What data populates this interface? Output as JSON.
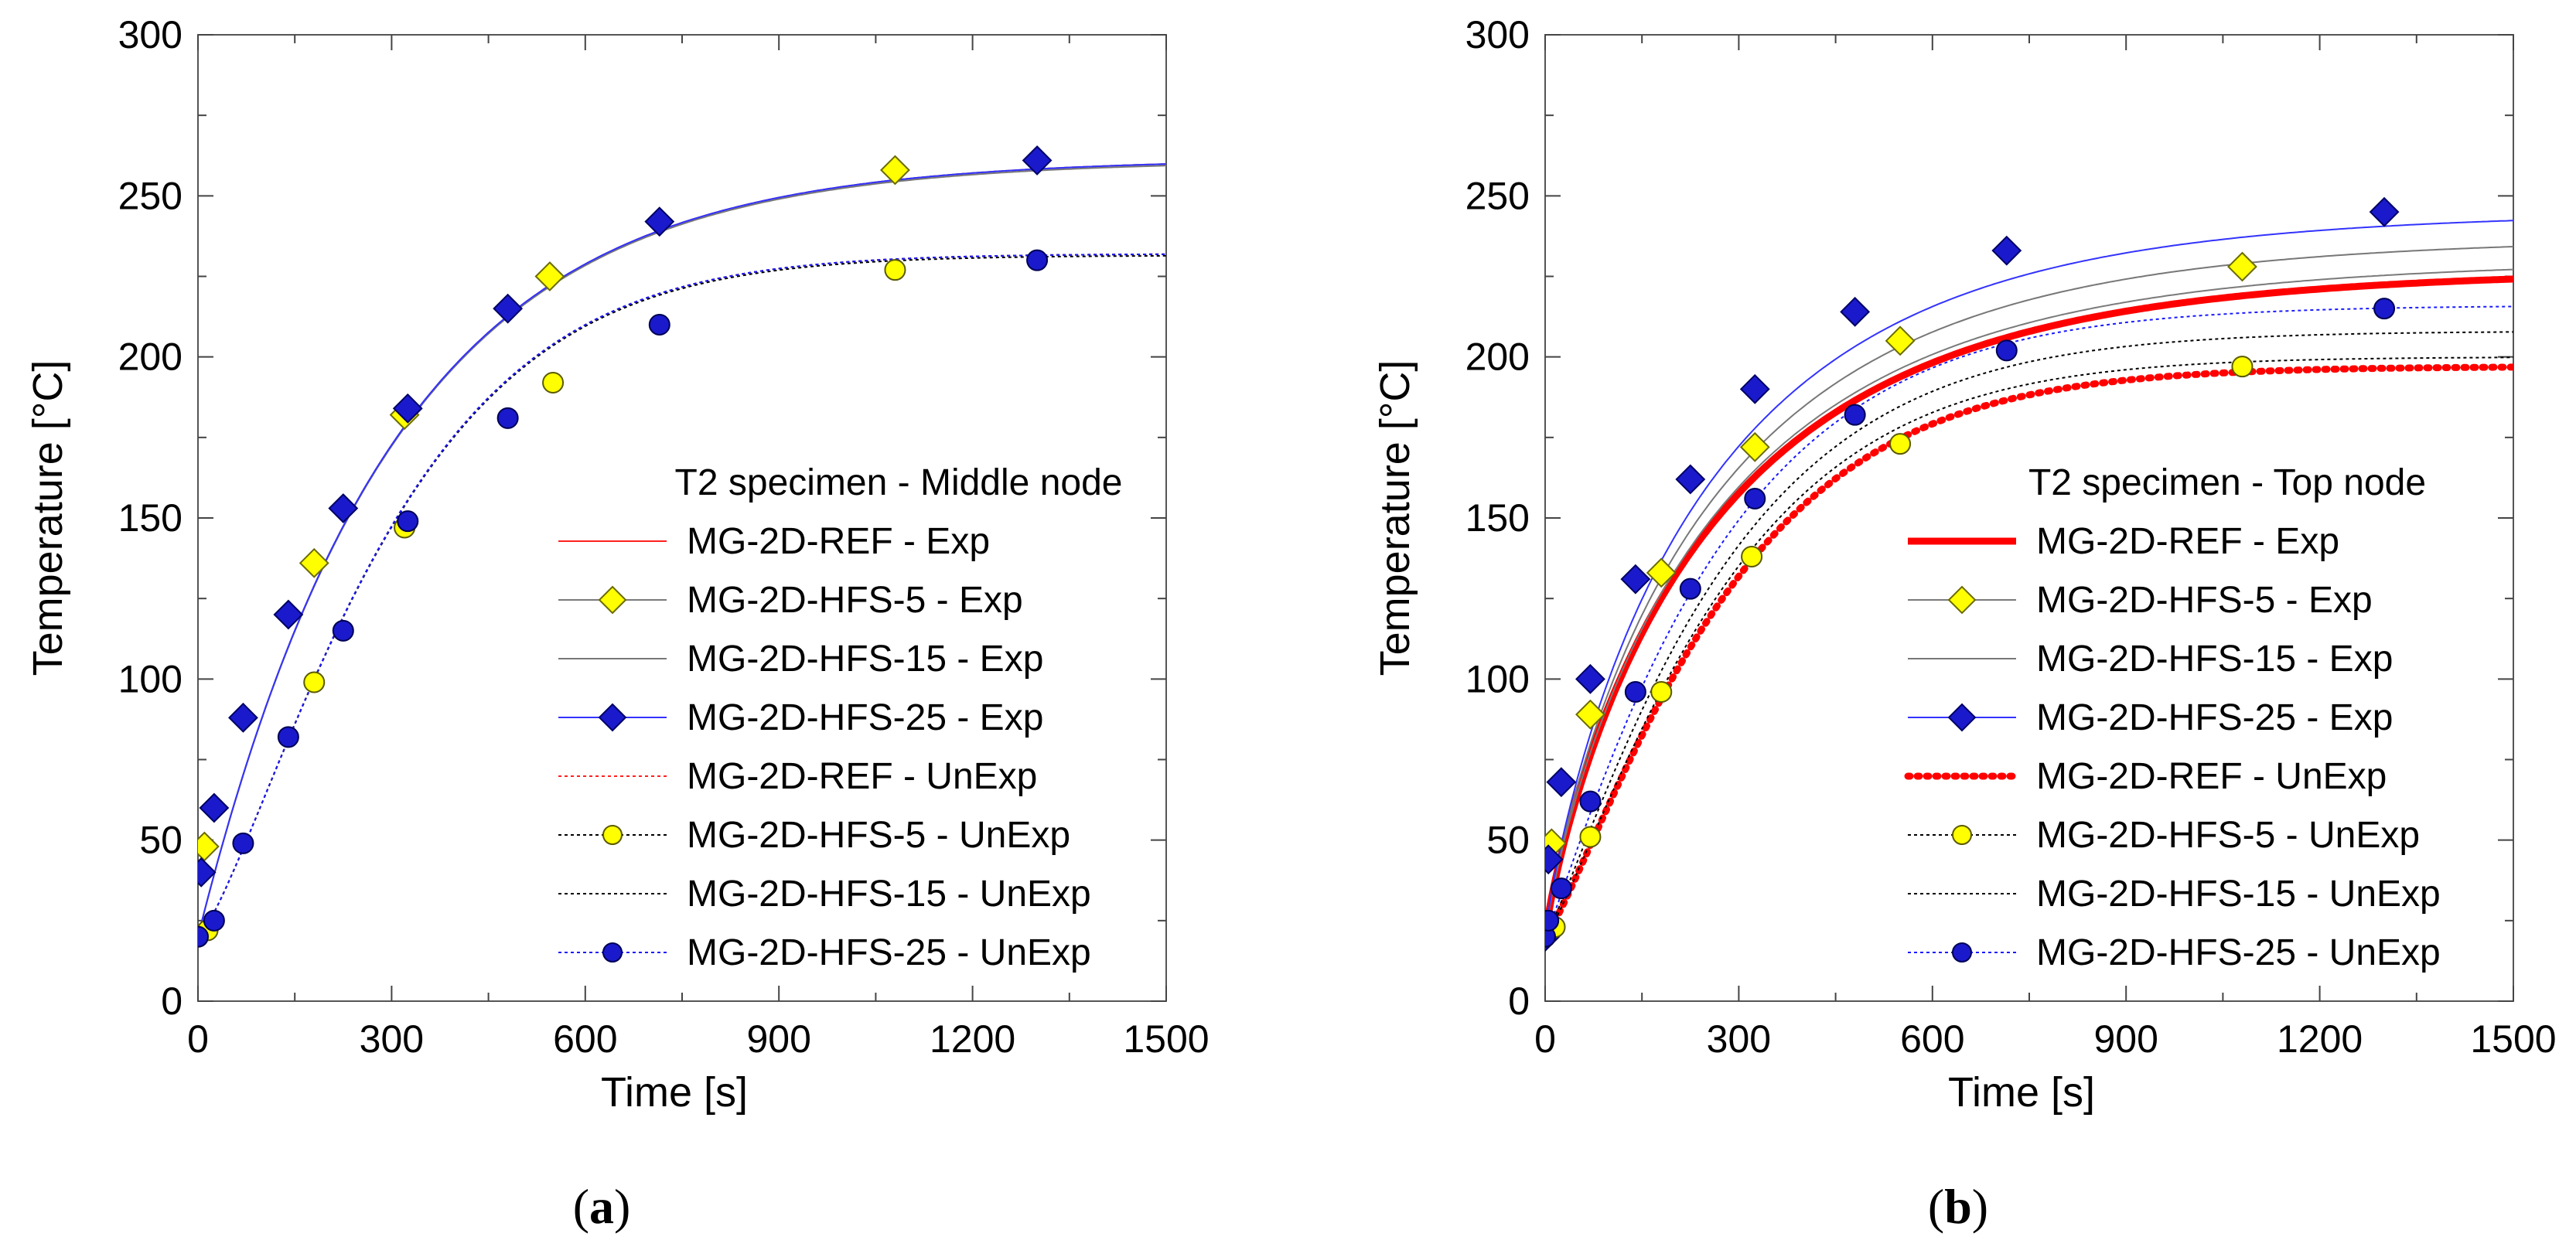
{
  "charts": [
    {
      "panel_label": {
        "prefix": "(",
        "letter": "a",
        "suffix": ")"
      },
      "xlabel": "Time  [s]",
      "ylabel": "Temperature  [°C]",
      "legend_title": "T2 specimen - Middle node",
      "legend_position": "center-right",
      "xticks": [
        "0",
        "300",
        "600",
        "900",
        "1200",
        "1500"
      ],
      "yticks": [
        "0",
        "50",
        "100",
        "150",
        "200",
        "250",
        "300"
      ]
    },
    {
      "panel_label": {
        "prefix": "(",
        "letter": "b",
        "suffix": ")"
      },
      "xlabel": "Time  [s]",
      "ylabel": "Temperature  [°C]",
      "legend_title": "T2 specimen - Top node",
      "legend_position": "center-right",
      "xticks": [
        "0",
        "300",
        "600",
        "900",
        "1200",
        "1500"
      ],
      "yticks": [
        "0",
        "50",
        "100",
        "150",
        "200",
        "250",
        "300"
      ]
    }
  ],
  "chart_data": [
    {
      "type": "line",
      "title": "T2 specimen - Middle node",
      "xlabel": "Time  [s]",
      "ylabel": "Temperature  [°C]",
      "xlim": [
        0,
        1500
      ],
      "ylim": [
        0,
        300
      ],
      "grid": false,
      "series": [
        {
          "name": "MG-2D-REF - Exp",
          "color": "#ff2020",
          "style": "solid",
          "width": "thin",
          "marker": "none",
          "curve": {
            "T0": 20,
            "Tinf": 261.5,
            "tau": 300,
            "n": 1
          },
          "points": []
        },
        {
          "name": "MG-2D-HFS-5 - Exp",
          "color": "#7a7a7a",
          "style": "solid",
          "width": "thin",
          "marker": "diamond",
          "marker_fill": "#ffff00",
          "curve": {
            "T0": 20,
            "Tinf": 261.5,
            "tau": 300,
            "n": 1
          },
          "points": [
            [
              10,
              48
            ],
            [
              180,
              136
            ],
            [
              320,
              182
            ],
            [
              545,
              225
            ],
            [
              1080,
              258
            ]
          ]
        },
        {
          "name": "MG-2D-HFS-15 - Exp",
          "color": "#777777",
          "style": "solid",
          "width": "thin",
          "marker": "none",
          "curve": {
            "T0": 20,
            "Tinf": 261,
            "tau": 300,
            "n": 1
          },
          "points": []
        },
        {
          "name": "MG-2D-HFS-25 - Exp",
          "color": "#3333ff",
          "style": "solid",
          "width": "thin",
          "marker": "diamond",
          "marker_fill": "#1a1acc",
          "curve": {
            "T0": 20,
            "Tinf": 261.5,
            "tau": 300,
            "n": 1
          },
          "points": [
            [
              5,
              40
            ],
            [
              25,
              60
            ],
            [
              70,
              88
            ],
            [
              140,
              120
            ],
            [
              225,
              153
            ],
            [
              325,
              184
            ],
            [
              480,
              215
            ],
            [
              715,
              242
            ],
            [
              1300,
              261
            ]
          ]
        },
        {
          "name": "MG-2D-REF - UnExp",
          "color": "#ff2020",
          "style": "dotted",
          "width": "thin",
          "marker": "none",
          "curve": {
            "T0": 20,
            "Tinf": 232,
            "tau": 320,
            "n": 1.3
          },
          "points": []
        },
        {
          "name": "MG-2D-HFS-5 - UnExp",
          "color": "#000000",
          "style": "dotted",
          "width": "thin",
          "marker": "circle",
          "marker_fill": "#ffff00",
          "curve": {
            "T0": 20,
            "Tinf": 232,
            "tau": 320,
            "n": 1.3
          },
          "points": [
            [
              0,
              20
            ],
            [
              15,
              22
            ],
            [
              180,
              99
            ],
            [
              320,
              147
            ],
            [
              550,
              192
            ],
            [
              1080,
              227
            ]
          ]
        },
        {
          "name": "MG-2D-HFS-15 - UnExp",
          "color": "#000000",
          "style": "dotted",
          "width": "thin",
          "marker": "none",
          "curve": {
            "T0": 20,
            "Tinf": 231.5,
            "tau": 320,
            "n": 1.3
          },
          "points": []
        },
        {
          "name": "MG-2D-HFS-25 - UnExp",
          "color": "#1a1aff",
          "style": "dotted",
          "width": "thin",
          "marker": "circle",
          "marker_fill": "#1a1acc",
          "curve": {
            "T0": 20,
            "Tinf": 232,
            "tau": 320,
            "n": 1.3
          },
          "points": [
            [
              0,
              20
            ],
            [
              25,
              25
            ],
            [
              70,
              49
            ],
            [
              140,
              82
            ],
            [
              225,
              115
            ],
            [
              325,
              149
            ],
            [
              480,
              181
            ],
            [
              715,
              210
            ],
            [
              1300,
              230
            ]
          ]
        }
      ]
    },
    {
      "type": "line",
      "title": "T2 specimen - Top node",
      "xlabel": "Time  [s]",
      "ylabel": "Temperature  [°C]",
      "xlim": [
        0,
        1500
      ],
      "ylim": [
        0,
        300
      ],
      "grid": false,
      "series": [
        {
          "name": "MG-2D-REF - Exp",
          "color": "#ff0000",
          "style": "solid",
          "width": "thick",
          "marker": "none",
          "curve": {
            "T0": 20,
            "Tinf": 227,
            "tau": 270,
            "n": 0.85
          },
          "points": []
        },
        {
          "name": "MG-2D-HFS-5 - Exp",
          "color": "#7a7a7a",
          "style": "solid",
          "width": "thin",
          "marker": "diamond",
          "marker_fill": "#ffff00",
          "curve": {
            "T0": 20,
            "Tinf": 230,
            "tau": 270,
            "n": 0.85
          },
          "points": [
            [
              0,
              20
            ],
            [
              10,
              49
            ],
            [
              70,
              89
            ],
            [
              180,
              133
            ],
            [
              325,
              172
            ],
            [
              550,
              205
            ],
            [
              1080,
              228
            ]
          ]
        },
        {
          "name": "MG-2D-HFS-15 - Exp",
          "color": "#777777",
          "style": "solid",
          "width": "thin",
          "marker": "none",
          "curve": {
            "T0": 20,
            "Tinf": 237,
            "tau": 265,
            "n": 0.85
          },
          "points": []
        },
        {
          "name": "MG-2D-HFS-25 - Exp",
          "color": "#3333ff",
          "style": "solid",
          "width": "thin",
          "marker": "diamond",
          "marker_fill": "#1a1acc",
          "curve": {
            "T0": 20,
            "Tinf": 245,
            "tau": 260,
            "n": 0.85
          },
          "points": [
            [
              0,
              20
            ],
            [
              5,
              44
            ],
            [
              25,
              68
            ],
            [
              70,
              100
            ],
            [
              140,
              131
            ],
            [
              225,
              162
            ],
            [
              325,
              190
            ],
            [
              480,
              214
            ],
            [
              715,
              233
            ],
            [
              1300,
              245
            ]
          ]
        },
        {
          "name": "MG-2D-REF - UnExp",
          "color": "#ff0000",
          "style": "dotted",
          "width": "thick",
          "marker": "none",
          "curve": {
            "T0": 20,
            "Tinf": 197,
            "tau": 300,
            "n": 1.2
          },
          "points": []
        },
        {
          "name": "MG-2D-HFS-5 - UnExp",
          "color": "#000000",
          "style": "dotted",
          "width": "thin",
          "marker": "circle",
          "marker_fill": "#ffff00",
          "curve": {
            "T0": 20,
            "Tinf": 200,
            "tau": 295,
            "n": 1.2
          },
          "points": [
            [
              0,
              20
            ],
            [
              15,
              23
            ],
            [
              70,
              51
            ],
            [
              180,
              96
            ],
            [
              320,
              138
            ],
            [
              550,
              173
            ],
            [
              1080,
              197
            ]
          ]
        },
        {
          "name": "MG-2D-HFS-15 - UnExp",
          "color": "#000000",
          "style": "dotted",
          "width": "thin",
          "marker": "none",
          "curve": {
            "T0": 20,
            "Tinf": 208,
            "tau": 290,
            "n": 1.15
          },
          "points": []
        },
        {
          "name": "MG-2D-HFS-25 - UnExp",
          "color": "#1a1aff",
          "style": "dotted",
          "width": "thin",
          "marker": "circle",
          "marker_fill": "#1a1acc",
          "curve": {
            "T0": 20,
            "Tinf": 216,
            "tau": 280,
            "n": 1.1
          },
          "points": [
            [
              0,
              20
            ],
            [
              5,
              25
            ],
            [
              25,
              35
            ],
            [
              70,
              62
            ],
            [
              140,
              96
            ],
            [
              225,
              128
            ],
            [
              325,
              156
            ],
            [
              480,
              182
            ],
            [
              715,
              202
            ],
            [
              1300,
              215
            ]
          ]
        }
      ]
    }
  ]
}
